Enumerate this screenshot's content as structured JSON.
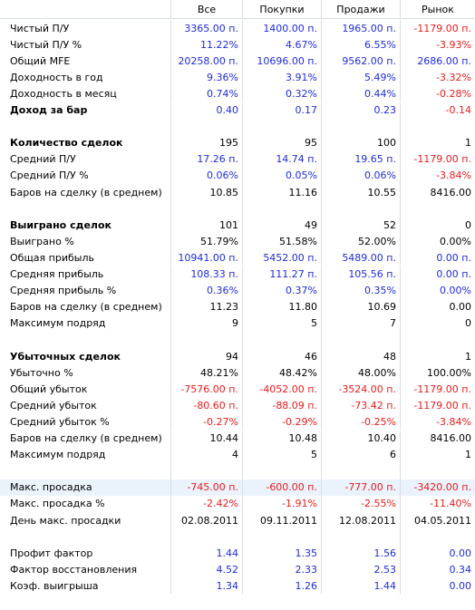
{
  "columns": [
    "",
    "Все",
    "Покупки",
    "Продажи",
    "Рынок"
  ],
  "rows": [
    {
      "label": "Чистый П/У",
      "bold": false,
      "values": [
        "3365.00 п.",
        "1400.00 п.",
        "1965.00 п.",
        "-1179.00 п."
      ],
      "colors": [
        "blue",
        "blue",
        "blue",
        "red"
      ]
    },
    {
      "label": "Чистый П/У %",
      "bold": false,
      "values": [
        "11.22%",
        "4.67%",
        "6.55%",
        "-3.93%"
      ],
      "colors": [
        "blue",
        "blue",
        "blue",
        "red"
      ]
    },
    {
      "label": "Общий MFE",
      "bold": false,
      "values": [
        "20258.00 п.",
        "10696.00 п.",
        "9562.00 п.",
        "2686.00 п."
      ],
      "colors": [
        "blue",
        "blue",
        "blue",
        "blue"
      ]
    },
    {
      "label": "Доходность в год",
      "bold": false,
      "values": [
        "9.36%",
        "3.91%",
        "5.49%",
        "-3.32%"
      ],
      "colors": [
        "blue",
        "blue",
        "blue",
        "red"
      ]
    },
    {
      "label": "Доходность в месяц",
      "bold": false,
      "values": [
        "0.74%",
        "0.32%",
        "0.44%",
        "-0.28%"
      ],
      "colors": [
        "blue",
        "blue",
        "blue",
        "red"
      ]
    },
    {
      "label": "Доход за бар",
      "bold": true,
      "values": [
        "0.40",
        "0.17",
        "0.23",
        "-0.14"
      ],
      "colors": [
        "blue",
        "blue",
        "blue",
        "red"
      ]
    },
    {
      "label": "",
      "bold": false,
      "values": [
        "",
        "",
        "",
        ""
      ],
      "colors": [
        "black",
        "black",
        "black",
        "black"
      ]
    },
    {
      "label": "Количество сделок",
      "bold": true,
      "values": [
        "195",
        "95",
        "100",
        "1"
      ],
      "colors": [
        "black",
        "black",
        "black",
        "black"
      ]
    },
    {
      "label": "Средний П/У",
      "bold": false,
      "values": [
        "17.26 п.",
        "14.74 п.",
        "19.65 п.",
        "-1179.00 п."
      ],
      "colors": [
        "blue",
        "blue",
        "blue",
        "red"
      ]
    },
    {
      "label": "Средний П/У %",
      "bold": false,
      "values": [
        "0.06%",
        "0.05%",
        "0.06%",
        "-3.84%"
      ],
      "colors": [
        "blue",
        "blue",
        "blue",
        "red"
      ]
    },
    {
      "label": "Баров на сделку (в среднем)",
      "bold": false,
      "values": [
        "10.85",
        "11.16",
        "10.55",
        "8416.00"
      ],
      "colors": [
        "black",
        "black",
        "black",
        "black"
      ]
    },
    {
      "label": "",
      "bold": false,
      "values": [
        "",
        "",
        "",
        ""
      ],
      "colors": [
        "black",
        "black",
        "black",
        "black"
      ]
    },
    {
      "label": "Выиграно сделок",
      "bold": true,
      "values": [
        "101",
        "49",
        "52",
        "0"
      ],
      "colors": [
        "black",
        "black",
        "black",
        "black"
      ]
    },
    {
      "label": "Выиграно %",
      "bold": false,
      "values": [
        "51.79%",
        "51.58%",
        "52.00%",
        "0.00%"
      ],
      "colors": [
        "black",
        "black",
        "black",
        "black"
      ]
    },
    {
      "label": "Общая прибыль",
      "bold": false,
      "values": [
        "10941.00 п.",
        "5452.00 п.",
        "5489.00 п.",
        "0.00 п."
      ],
      "colors": [
        "blue",
        "blue",
        "blue",
        "blue"
      ]
    },
    {
      "label": "Средняя прибыль",
      "bold": false,
      "values": [
        "108.33 п.",
        "111.27 п.",
        "105.56 п.",
        "0.00 п."
      ],
      "colors": [
        "blue",
        "blue",
        "blue",
        "blue"
      ]
    },
    {
      "label": "Средняя прибыль %",
      "bold": false,
      "values": [
        "0.36%",
        "0.37%",
        "0.35%",
        "0.00%"
      ],
      "colors": [
        "blue",
        "blue",
        "blue",
        "blue"
      ]
    },
    {
      "label": "Баров на сделку (в среднем)",
      "bold": false,
      "values": [
        "11.23",
        "11.80",
        "10.69",
        "0.00"
      ],
      "colors": [
        "black",
        "black",
        "black",
        "black"
      ]
    },
    {
      "label": "Максимум подряд",
      "bold": false,
      "values": [
        "9",
        "5",
        "7",
        "0"
      ],
      "colors": [
        "black",
        "black",
        "black",
        "black"
      ]
    },
    {
      "label": "",
      "bold": false,
      "values": [
        "",
        "",
        "",
        ""
      ],
      "colors": [
        "black",
        "black",
        "black",
        "black"
      ]
    },
    {
      "label": "Убыточных сделок",
      "bold": true,
      "values": [
        "94",
        "46",
        "48",
        "1"
      ],
      "colors": [
        "black",
        "black",
        "black",
        "black"
      ]
    },
    {
      "label": "Убыточно %",
      "bold": false,
      "values": [
        "48.21%",
        "48.42%",
        "48.00%",
        "100.00%"
      ],
      "colors": [
        "black",
        "black",
        "black",
        "black"
      ]
    },
    {
      "label": "Общий убыток",
      "bold": false,
      "values": [
        "-7576.00 п.",
        "-4052.00 п.",
        "-3524.00 п.",
        "-1179.00 п."
      ],
      "colors": [
        "red",
        "red",
        "red",
        "red"
      ]
    },
    {
      "label": "Средний убыток",
      "bold": false,
      "values": [
        "-80.60 п.",
        "-88.09 п.",
        "-73.42 п.",
        "-1179.00 п."
      ],
      "colors": [
        "red",
        "red",
        "red",
        "red"
      ]
    },
    {
      "label": "Средний убыток %",
      "bold": false,
      "values": [
        "-0.27%",
        "-0.29%",
        "-0.25%",
        "-3.84%"
      ],
      "colors": [
        "red",
        "red",
        "red",
        "red"
      ]
    },
    {
      "label": "Баров на сделку (в среднем)",
      "bold": false,
      "values": [
        "10.44",
        "10.48",
        "10.40",
        "8416.00"
      ],
      "colors": [
        "black",
        "black",
        "black",
        "black"
      ]
    },
    {
      "label": "Максимум подряд",
      "bold": false,
      "values": [
        "4",
        "5",
        "6",
        "1"
      ],
      "colors": [
        "black",
        "black",
        "black",
        "black"
      ]
    },
    {
      "label": "",
      "bold": false,
      "values": [
        "",
        "",
        "",
        ""
      ],
      "colors": [
        "black",
        "black",
        "black",
        "black"
      ]
    },
    {
      "label": "Макс. просадка",
      "bold": false,
      "values": [
        "-745.00 п.",
        "-600.00 п.",
        "-777.00 п.",
        "-3420.00 п."
      ],
      "colors": [
        "red",
        "red",
        "red",
        "red"
      ],
      "selected": true
    },
    {
      "label": "Макс. просадка %",
      "bold": false,
      "values": [
        "-2.42%",
        "-1.91%",
        "-2.55%",
        "-11.40%"
      ],
      "colors": [
        "red",
        "red",
        "red",
        "red"
      ]
    },
    {
      "label": "День макс. просадки",
      "bold": false,
      "values": [
        "02.08.2011",
        "09.11.2011",
        "12.08.2011",
        "04.05.2011"
      ],
      "colors": [
        "black",
        "black",
        "black",
        "black"
      ]
    },
    {
      "label": "",
      "bold": false,
      "values": [
        "",
        "",
        "",
        ""
      ],
      "colors": [
        "black",
        "black",
        "black",
        "black"
      ]
    },
    {
      "label": "Профит фактор",
      "bold": false,
      "values": [
        "1.44",
        "1.35",
        "1.56",
        "0.00"
      ],
      "colors": [
        "blue",
        "blue",
        "blue",
        "blue"
      ]
    },
    {
      "label": "Фактор восстановления",
      "bold": false,
      "values": [
        "4.52",
        "2.33",
        "2.53",
        "0.34"
      ],
      "colors": [
        "blue",
        "blue",
        "blue",
        "blue"
      ]
    },
    {
      "label": "Коэф. выигрыша",
      "bold": false,
      "values": [
        "1.34",
        "1.26",
        "1.44",
        "0.00"
      ],
      "colors": [
        "blue",
        "blue",
        "blue",
        "blue"
      ]
    }
  ],
  "color_map": {
    "blue": "#1f2bdc",
    "red": "#ea1b1b",
    "black": "#000000"
  }
}
